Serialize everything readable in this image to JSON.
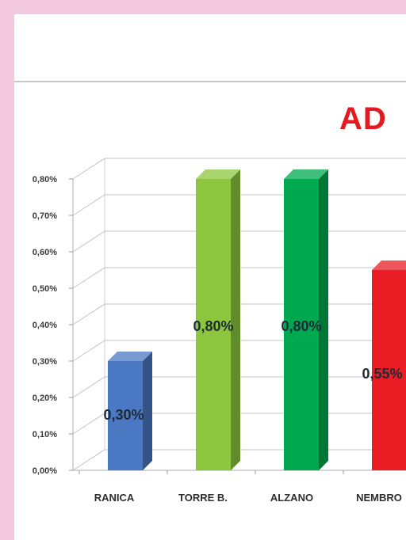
{
  "chart_data": {
    "type": "bar",
    "title": "AD",
    "categories": [
      "RANICA",
      "TORRE B.",
      "ALZANO",
      "NEMBRO"
    ],
    "values": [
      0.3,
      0.8,
      0.8,
      0.55
    ],
    "data_labels": [
      "0,30%",
      "0,80%",
      "0,80%",
      "0,55%"
    ],
    "colors": [
      "#4a78c2",
      "#8cc63f",
      "#00a84f",
      "#ea1d25"
    ],
    "yticks": [
      "0,00%",
      "0,10%",
      "0,20%",
      "0,30%",
      "0,40%",
      "0,50%",
      "0,60%",
      "0,70%",
      "0,80%"
    ],
    "ylim": [
      0,
      0.8
    ],
    "grid": true,
    "xlabel": "",
    "ylabel": ""
  }
}
